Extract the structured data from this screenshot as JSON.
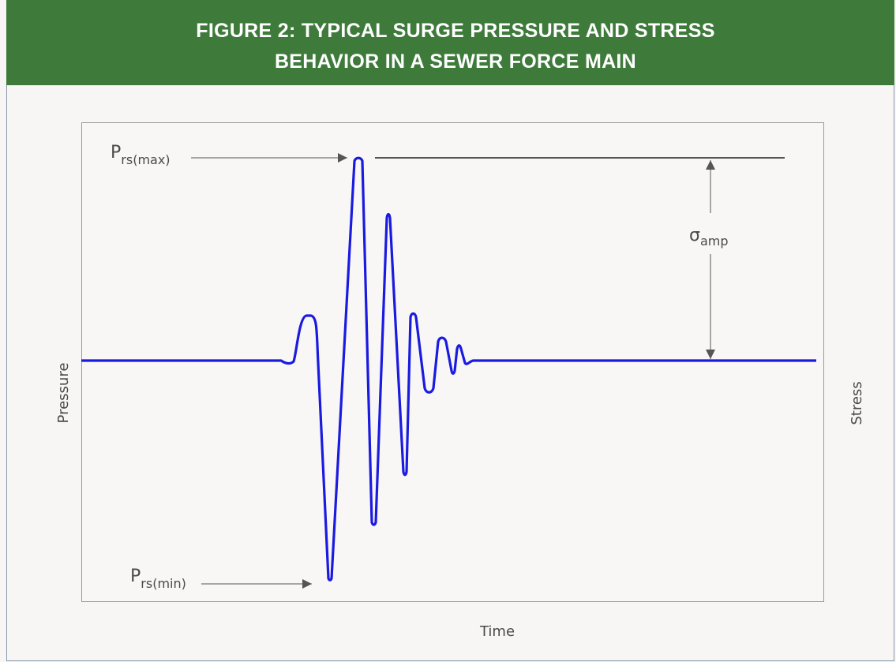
{
  "header": {
    "title_lines": [
      "FIGURE 2: TYPICAL SURGE PRESSURE AND STRESS",
      "BEHAVIOR IN A SEWER FORCE MAIN"
    ]
  },
  "labels": {
    "p_max": {
      "symbol": "P",
      "subscript": "rs(max)"
    },
    "p_min": {
      "symbol": "P",
      "subscript": "rs(min)"
    },
    "amplitude": {
      "symbol": "σ",
      "subscript": "amp"
    }
  },
  "axes": {
    "left": "Pressure",
    "right": "Stress",
    "bottom": "Time"
  }
}
